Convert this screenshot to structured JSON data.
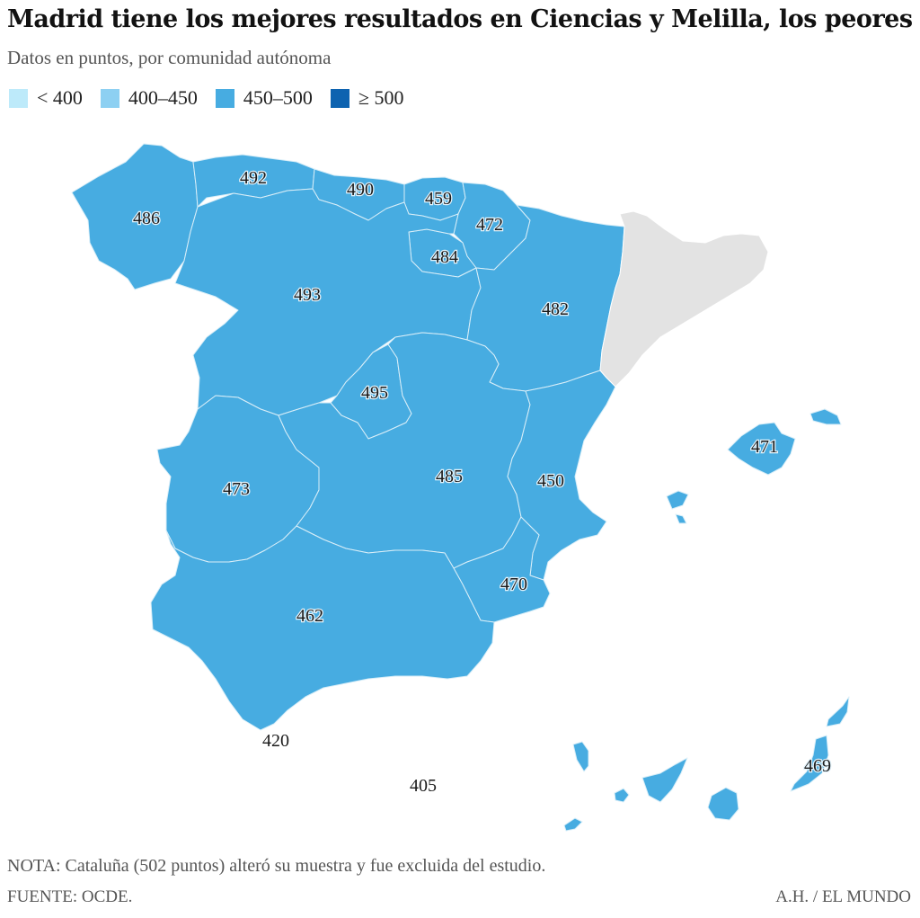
{
  "title": "Madrid tiene los mejores resultados en Ciencias y Melilla, los peores",
  "subtitle": "Datos en puntos, por comunidad autónoma",
  "legend": [
    {
      "label": "< 400",
      "color": "#bdeafa"
    },
    {
      "label": "400–450",
      "color": "#8dd0f2"
    },
    {
      "label": "450–500",
      "color": "#47ace1"
    },
    {
      "label": "≥ 500",
      "color": "#0d63b0"
    }
  ],
  "colors": {
    "region_fill": "#47ace1",
    "excluded_fill": "#e3e3e3",
    "border": "#d9eef8"
  },
  "regions": [
    {
      "name": "Galicia",
      "value": "486"
    },
    {
      "name": "Asturias",
      "value": "492"
    },
    {
      "name": "Cantabria",
      "value": "490"
    },
    {
      "name": "País Vasco",
      "value": "459"
    },
    {
      "name": "Navarra",
      "value": "472"
    },
    {
      "name": "La Rioja",
      "value": "484"
    },
    {
      "name": "Castilla y León",
      "value": "493"
    },
    {
      "name": "Aragón",
      "value": "482"
    },
    {
      "name": "Madrid",
      "value": "495"
    },
    {
      "name": "Extremadura",
      "value": "473"
    },
    {
      "name": "Castilla-La Mancha",
      "value": "485"
    },
    {
      "name": "Comunidad Valenciana",
      "value": "450"
    },
    {
      "name": "Murcia",
      "value": "470"
    },
    {
      "name": "Andalucía",
      "value": "462"
    },
    {
      "name": "Baleares",
      "value": "471"
    },
    {
      "name": "Canarias",
      "value": "469"
    },
    {
      "name": "Ceuta",
      "value": "420"
    },
    {
      "name": "Melilla",
      "value": "405"
    }
  ],
  "note": "NOTA: Cataluña (502 puntos) alteró su muestra y fue excluida del estudio.",
  "source": "FUENTE: OCDE.",
  "credit": "A.H. / EL MUNDO"
}
